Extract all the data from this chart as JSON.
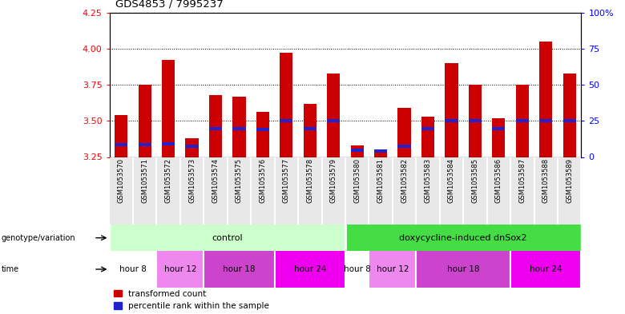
{
  "title": "GDS4853 / 7995237",
  "samples": [
    "GSM1053570",
    "GSM1053571",
    "GSM1053572",
    "GSM1053573",
    "GSM1053574",
    "GSM1053575",
    "GSM1053576",
    "GSM1053577",
    "GSM1053578",
    "GSM1053579",
    "GSM1053580",
    "GSM1053581",
    "GSM1053582",
    "GSM1053583",
    "GSM1053584",
    "GSM1053585",
    "GSM1053586",
    "GSM1053587",
    "GSM1053588",
    "GSM1053589"
  ],
  "transformed_count": [
    3.54,
    3.75,
    3.92,
    3.38,
    3.68,
    3.67,
    3.56,
    3.97,
    3.62,
    3.83,
    3.33,
    3.3,
    3.59,
    3.53,
    3.9,
    3.75,
    3.52,
    3.75,
    4.05,
    3.83
  ],
  "blue_bar_position": [
    3.335,
    3.335,
    3.34,
    3.325,
    3.445,
    3.445,
    3.44,
    3.5,
    3.445,
    3.5,
    3.295,
    3.29,
    3.325,
    3.445,
    3.5,
    3.5,
    3.445,
    3.5,
    3.5,
    3.5
  ],
  "ylim": [
    3.25,
    4.25
  ],
  "yticks_left": [
    3.25,
    3.5,
    3.75,
    4.0,
    4.25
  ],
  "yticks_right": [
    0,
    25,
    50,
    75,
    100
  ],
  "bar_color": "#cc0000",
  "blue_color": "#2222cc",
  "bar_bottom": 3.25,
  "control_color": "#ccffcc",
  "doxy_color": "#44dd44",
  "time_entries": [
    {
      "label": "hour 8",
      "start": 0,
      "end": 2,
      "color": "#ffffff"
    },
    {
      "label": "hour 12",
      "start": 2,
      "end": 4,
      "color": "#ee88ee"
    },
    {
      "label": "hour 18",
      "start": 4,
      "end": 7,
      "color": "#cc44cc"
    },
    {
      "label": "hour 24",
      "start": 7,
      "end": 10,
      "color": "#ee00ee"
    },
    {
      "label": "hour 8",
      "start": 10,
      "end": 11,
      "color": "#ffffff"
    },
    {
      "label": "hour 12",
      "start": 11,
      "end": 13,
      "color": "#ee88ee"
    },
    {
      "label": "hour 18",
      "start": 13,
      "end": 17,
      "color": "#cc44cc"
    },
    {
      "label": "hour 24",
      "start": 17,
      "end": 20,
      "color": "#ee00ee"
    }
  ]
}
